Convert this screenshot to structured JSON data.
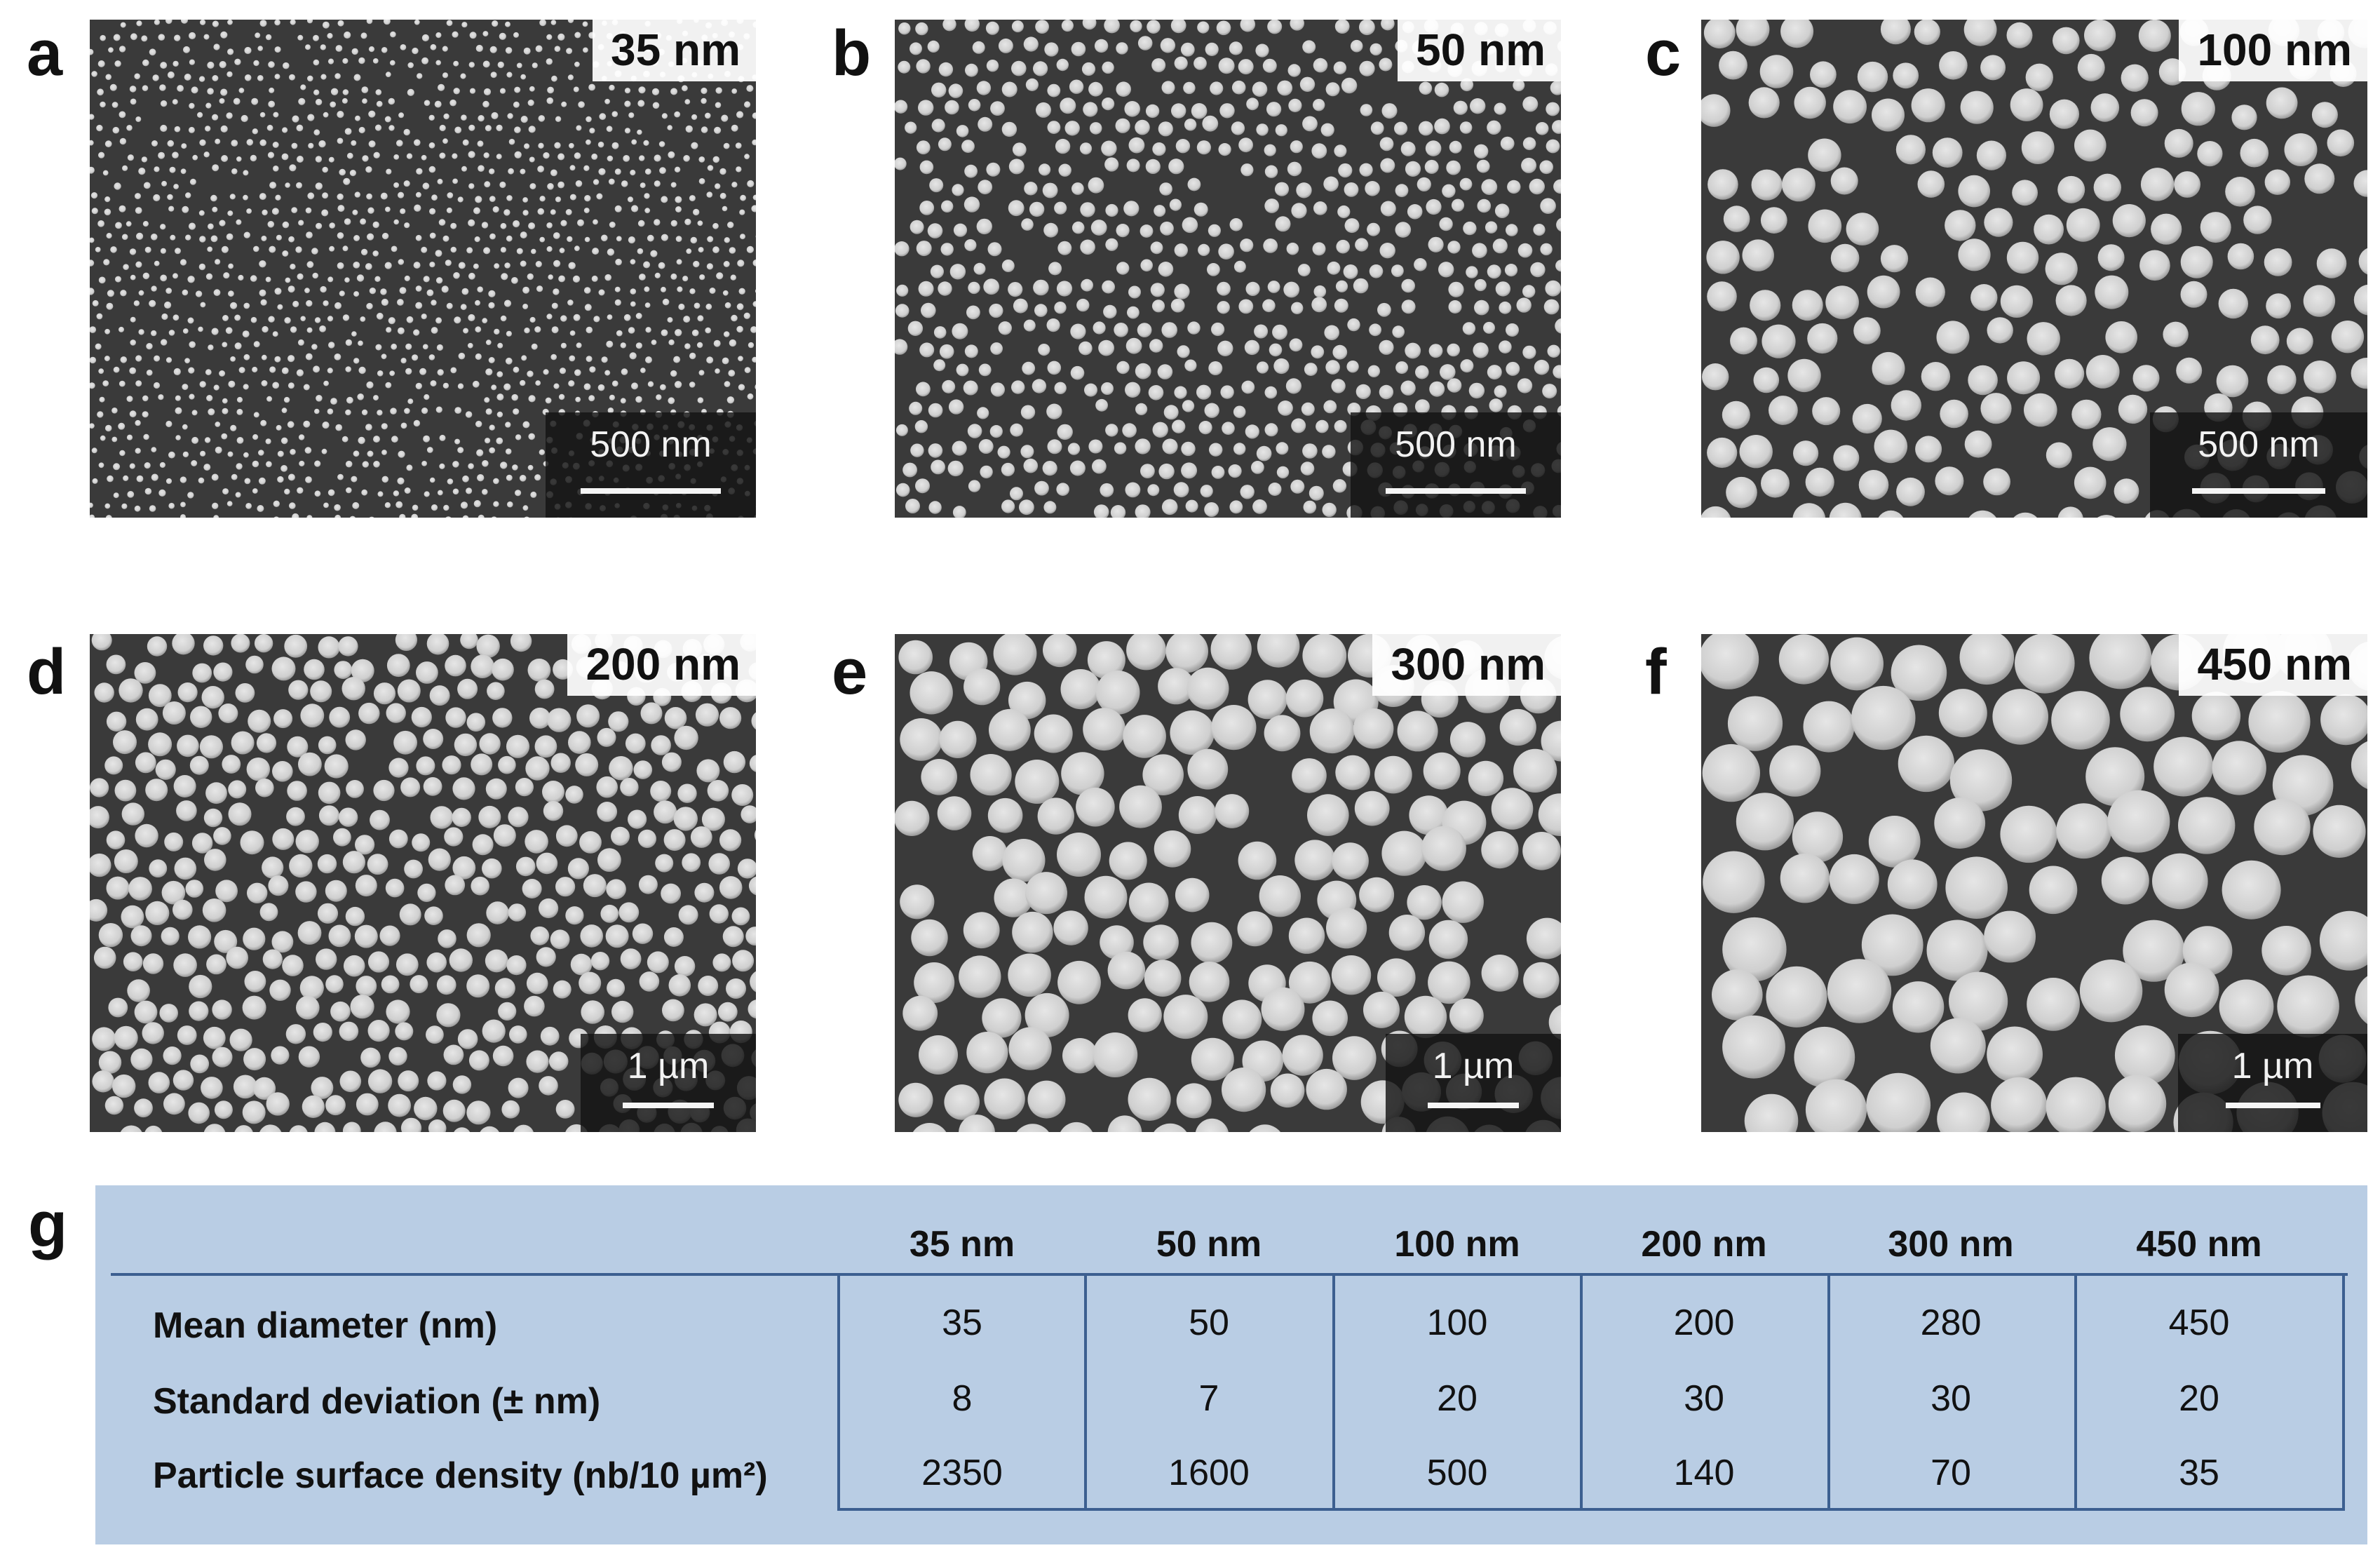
{
  "panels": [
    {
      "letter": "a",
      "size_label": "35 nm",
      "scale_label": "500 nm"
    },
    {
      "letter": "b",
      "size_label": "50 nm",
      "scale_label": "500 nm"
    },
    {
      "letter": "c",
      "size_label": "100 nm",
      "scale_label": "500 nm"
    },
    {
      "letter": "d",
      "size_label": "200 nm",
      "scale_label": "1 µm"
    },
    {
      "letter": "e",
      "size_label": "300 nm",
      "scale_label": "1 µm"
    },
    {
      "letter": "f",
      "size_label": "450 nm",
      "scale_label": "1 µm"
    }
  ],
  "table": {
    "letter": "g",
    "columns": [
      "35 nm",
      "50 nm",
      "100 nm",
      "200 nm",
      "300 nm",
      "450 nm"
    ],
    "rows": [
      {
        "label": "Mean diameter (nm)",
        "values": [
          "35",
          "50",
          "100",
          "200",
          "280",
          "450"
        ]
      },
      {
        "label": "Standard deviation (± nm)",
        "values": [
          "8",
          "7",
          "20",
          "30",
          "30",
          "20"
        ]
      },
      {
        "label": "Particle surface density (nb/10 µm²)",
        "values": [
          "2350",
          "1600",
          "500",
          "140",
          "70",
          "35"
        ]
      }
    ]
  },
  "colors": {
    "table_background": "#b9cde4",
    "table_lines": "#3c5f90",
    "sem_background": "#3a3a3a",
    "particle": "#d9d9d9"
  }
}
